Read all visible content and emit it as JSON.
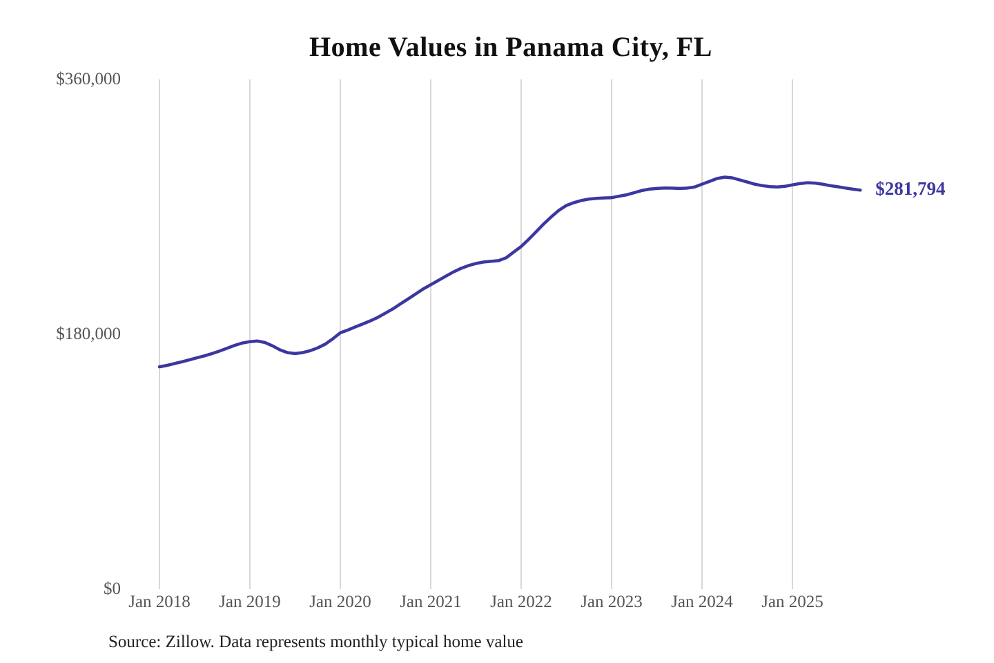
{
  "chart_data": {
    "type": "line",
    "title": "Home Values in Panama City, FL",
    "end_label": "$281,794",
    "end_value": 281794,
    "source_note": "Source: Zillow. Data represents monthly typical home value",
    "ylabel": "",
    "xlabel": "",
    "ylim": [
      0,
      360000
    ],
    "grid": "vertical-only",
    "y_ticks": [
      {
        "label": "$0",
        "value": 0
      },
      {
        "label": "$180,000",
        "value": 180000
      },
      {
        "label": "$360,000",
        "value": 360000
      }
    ],
    "x_ticks": [
      {
        "label": "Jan 2018",
        "month_index": 0
      },
      {
        "label": "Jan 2019",
        "month_index": 12
      },
      {
        "label": "Jan 2020",
        "month_index": 24
      },
      {
        "label": "Jan 2021",
        "month_index": 36
      },
      {
        "label": "Jan 2022",
        "month_index": 48
      },
      {
        "label": "Jan 2023",
        "month_index": 60
      },
      {
        "label": "Jan 2024",
        "month_index": 72
      },
      {
        "label": "Jan 2025",
        "month_index": 84
      }
    ],
    "line_color": "#3c37a0",
    "grid_color": "#cccccc",
    "x": [
      "2018-01",
      "2018-02",
      "2018-03",
      "2018-04",
      "2018-05",
      "2018-06",
      "2018-07",
      "2018-08",
      "2018-09",
      "2018-10",
      "2018-11",
      "2018-12",
      "2019-01",
      "2019-02",
      "2019-03",
      "2019-04",
      "2019-05",
      "2019-06",
      "2019-07",
      "2019-08",
      "2019-09",
      "2019-10",
      "2019-11",
      "2019-12",
      "2020-01",
      "2020-02",
      "2020-03",
      "2020-04",
      "2020-05",
      "2020-06",
      "2020-07",
      "2020-08",
      "2020-09",
      "2020-10",
      "2020-11",
      "2020-12",
      "2021-01",
      "2021-02",
      "2021-03",
      "2021-04",
      "2021-05",
      "2021-06",
      "2021-07",
      "2021-08",
      "2021-09",
      "2021-10",
      "2021-11",
      "2021-12",
      "2022-01",
      "2022-02",
      "2022-03",
      "2022-04",
      "2022-05",
      "2022-06",
      "2022-07",
      "2022-08",
      "2022-09",
      "2022-10",
      "2022-11",
      "2022-12",
      "2023-01",
      "2023-02",
      "2023-03",
      "2023-04",
      "2023-05",
      "2023-06",
      "2023-07",
      "2023-08",
      "2023-09",
      "2023-10",
      "2023-11",
      "2023-12",
      "2024-01",
      "2024-02",
      "2024-03",
      "2024-04",
      "2024-05",
      "2024-06",
      "2024-07",
      "2024-08",
      "2024-09",
      "2024-10",
      "2024-11",
      "2024-12",
      "2025-01",
      "2025-02",
      "2025-03",
      "2025-04",
      "2025-05",
      "2025-06",
      "2025-07",
      "2025-08",
      "2025-09",
      "2025-10"
    ],
    "values": [
      157000,
      158000,
      159300,
      160600,
      162000,
      163400,
      164800,
      166400,
      168200,
      170200,
      172200,
      173800,
      174800,
      175200,
      174200,
      171800,
      169000,
      167000,
      166400,
      167000,
      168400,
      170400,
      173000,
      176800,
      181000,
      183000,
      185200,
      187300,
      189500,
      192000,
      195000,
      198000,
      201500,
      205000,
      208500,
      212000,
      215000,
      218000,
      221000,
      224000,
      226500,
      228500,
      230000,
      231000,
      231500,
      232000,
      234000,
      238000,
      242000,
      247000,
      252500,
      258000,
      263000,
      267500,
      271000,
      273000,
      274500,
      275500,
      276000,
      276300,
      276500,
      277500,
      278500,
      280000,
      281500,
      282500,
      283000,
      283300,
      283200,
      283000,
      283200,
      284000,
      286000,
      288000,
      290000,
      291000,
      290500,
      289000,
      287500,
      286000,
      285000,
      284300,
      284000,
      284500,
      285500,
      286500,
      287000,
      286800,
      286000,
      285000,
      284200,
      283300,
      282500,
      281794
    ]
  }
}
